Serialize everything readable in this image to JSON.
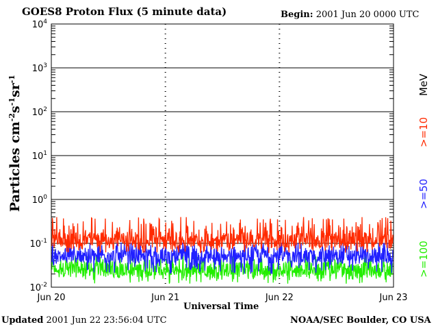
{
  "header": {
    "title": "GOES8 Proton Flux (5 minute data)",
    "begin_label": "Begin:",
    "begin_value": "2001 Jun 20 0000 UTC"
  },
  "footer": {
    "updated_label": "Updated",
    "updated_value": "2001 Jun 22 23:56:04 UTC",
    "source": "NOAA/SEC Boulder, CO USA"
  },
  "chart_data": {
    "type": "line",
    "title": "GOES8 Proton Flux (5 minute data)",
    "xlabel": "Universal Time",
    "ylabel": "Particles cm-2s-1sr-1",
    "yscale": "log",
    "ylim": [
      0.01,
      10000
    ],
    "y_ticks": [
      "10-2",
      "10-1",
      "100",
      "101",
      "102",
      "103",
      "104"
    ],
    "x_ticks": [
      "Jun 20",
      "Jun 21",
      "Jun 22",
      "Jun 23"
    ],
    "xlim": [
      "2001-06-20 00:00",
      "2001-06-23 00:00"
    ],
    "legend_unit": "MeV",
    "legend_placement": "right",
    "grid": true,
    "series": [
      {
        "name": ">=10",
        "color": "#ff2a00",
        "typical": 0.12,
        "range": [
          0.06,
          0.5
        ]
      },
      {
        "name": ">=50",
        "color": "#2020ff",
        "typical": 0.05,
        "range": [
          0.02,
          0.12
        ]
      },
      {
        "name": ">=100",
        "color": "#22ee00",
        "typical": 0.025,
        "range": [
          0.012,
          0.06
        ]
      }
    ]
  }
}
